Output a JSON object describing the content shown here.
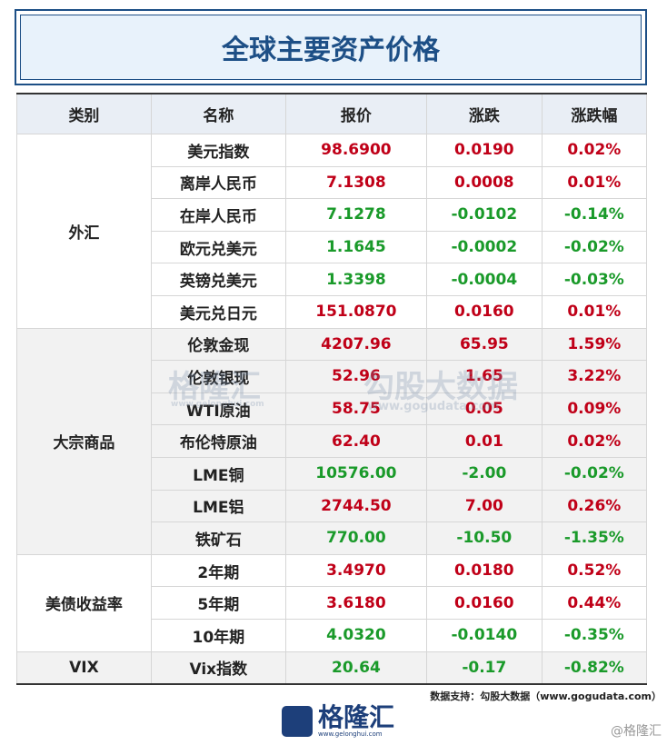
{
  "header": {
    "title": "全球主要资产价格"
  },
  "table": {
    "columns": [
      "类别",
      "名称",
      "报价",
      "涨跌",
      "涨跌幅"
    ],
    "groups": [
      {
        "category": "外汇",
        "rows": [
          [
            "美元指数",
            "98.6900",
            "0.0190",
            "0.02%"
          ],
          [
            "离岸人民币",
            "7.1308",
            "0.0008",
            "0.01%"
          ],
          [
            "在岸人民币",
            "7.1278",
            "-0.0102",
            "-0.14%"
          ],
          [
            "欧元兑美元",
            "1.1645",
            "-0.0002",
            "-0.02%"
          ],
          [
            "英镑兑美元",
            "1.3398",
            "-0.0004",
            "-0.03%"
          ],
          [
            "美元兑日元",
            "151.0870",
            "0.0160",
            "0.01%"
          ]
        ]
      },
      {
        "category": "大宗商品",
        "rows": [
          [
            "伦敦金现",
            "4207.96",
            "65.95",
            "1.59%"
          ],
          [
            "伦敦银现",
            "52.96",
            "1.65",
            "3.22%"
          ],
          [
            "WTI原油",
            "58.75",
            "0.05",
            "0.09%"
          ],
          [
            "布伦特原油",
            "62.40",
            "0.01",
            "0.02%"
          ],
          [
            "LME铜",
            "10576.00",
            "-2.00",
            "-0.02%"
          ],
          [
            "LME铝",
            "2744.50",
            "7.00",
            "0.26%"
          ],
          [
            "铁矿石",
            "770.00",
            "-10.50",
            "-1.35%"
          ]
        ]
      },
      {
        "category": "美债收益率",
        "rows": [
          [
            "2年期",
            "3.4970",
            "0.0180",
            "0.52%"
          ],
          [
            "5年期",
            "3.6180",
            "0.0160",
            "0.44%"
          ],
          [
            "10年期",
            "4.0320",
            "-0.0140",
            "-0.35%"
          ]
        ]
      },
      {
        "category": "VIX",
        "rows": [
          [
            "Vix指数",
            "20.64",
            "-0.17",
            "-0.82%"
          ]
        ]
      }
    ]
  },
  "watermark": {
    "left": "格隆汇",
    "left_sub": "www.gelonghui.com",
    "right": "勾股大数据",
    "right_sub": "www.gogudata.com"
  },
  "footer": {
    "source": "数据支持：勾股大数据（www.gogudata.com）",
    "logo": "格隆汇",
    "logo_sub": "www.gelonghui.com",
    "corner": "@格隆汇"
  }
}
